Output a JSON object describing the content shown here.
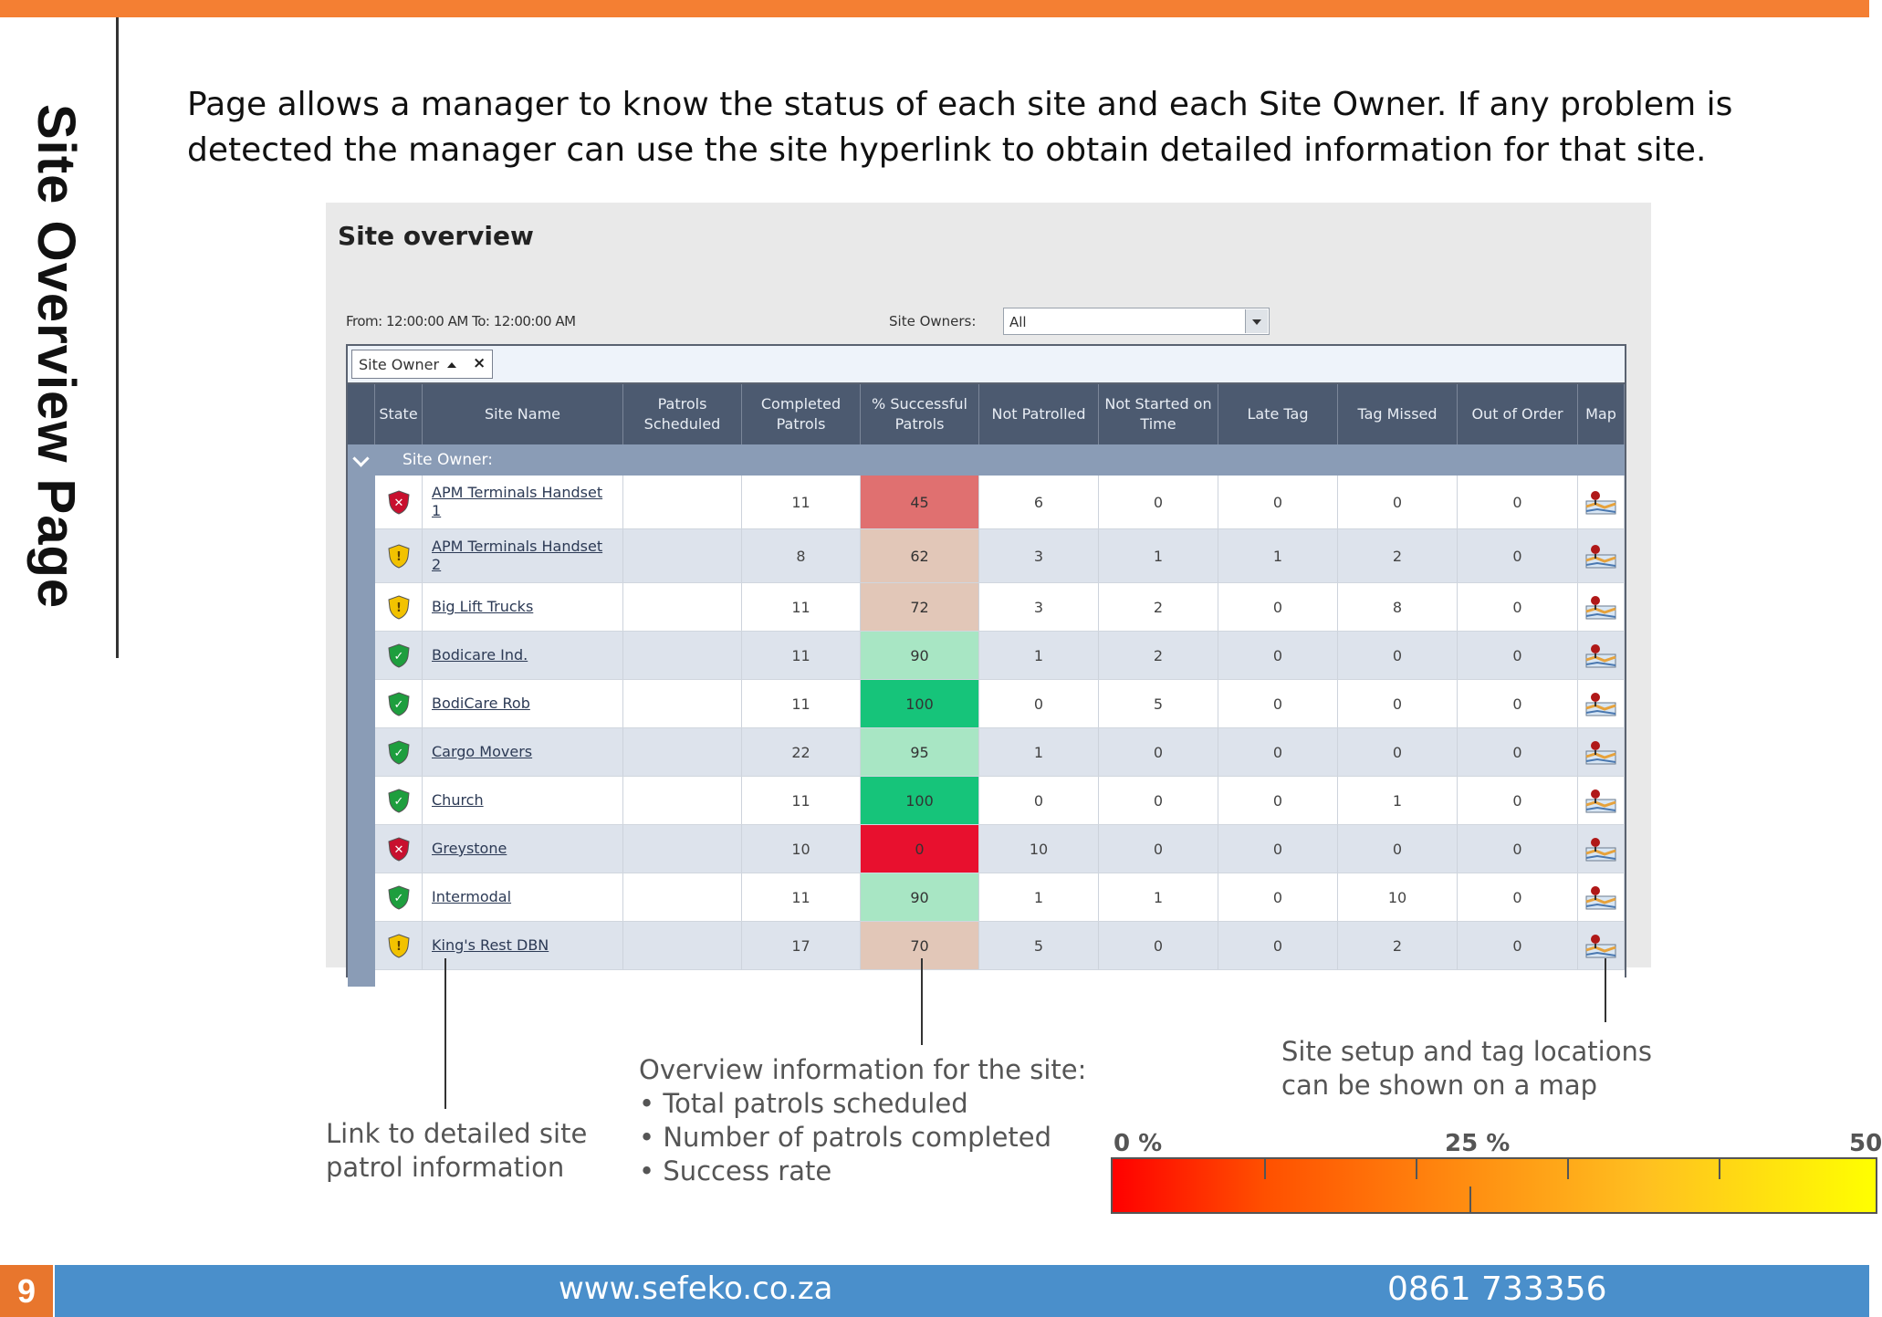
{
  "page": {
    "title": "Site Overview Page",
    "intro": "Page allows a manager to  know the status of each site and each Site Owner. If any problem is detected the manager can use the site hyperlink to  obtain detailed information for that site.",
    "page_number": "9",
    "footer_url": "www.sefeko.co.za",
    "footer_phone": "0861 733356",
    "accent_color": "#f47f33",
    "footer_color": "#4a8fcb"
  },
  "screen": {
    "title": "Site overview",
    "from_to": "From: 12:00:00 AM    To: 12:00:00 AM",
    "site_owners_label": "Site Owners:",
    "site_owners_value": "All",
    "group_chip": "Site Owner",
    "group_row": "Site Owner:",
    "columns": [
      "State",
      "Site Name",
      "Patrols Scheduled",
      "Completed Patrols",
      "% Successful Patrols",
      "Not Patrolled",
      "Not Started on Time",
      "Late Tag",
      "Tag Missed",
      "Out of Order",
      "Map"
    ],
    "rows": [
      {
        "state": "error",
        "name": "APM Terminals Handset 1",
        "scheduled": "",
        "completed": "11",
        "success": "45",
        "not_patrolled": "6",
        "not_started": "0",
        "late": "0",
        "missed": "0",
        "out_of_order": "0"
      },
      {
        "state": "warning",
        "name": "APM Terminals Handset 2",
        "scheduled": "",
        "completed": "8",
        "success": "62",
        "not_patrolled": "3",
        "not_started": "1",
        "late": "1",
        "missed": "2",
        "out_of_order": "0"
      },
      {
        "state": "warning",
        "name": "Big Lift Trucks",
        "scheduled": "",
        "completed": "11",
        "success": "72",
        "not_patrolled": "3",
        "not_started": "2",
        "late": "0",
        "missed": "8",
        "out_of_order": "0"
      },
      {
        "state": "ok",
        "name": "Bodicare Ind.",
        "scheduled": "",
        "completed": "11",
        "success": "90",
        "not_patrolled": "1",
        "not_started": "2",
        "late": "0",
        "missed": "0",
        "out_of_order": "0"
      },
      {
        "state": "ok",
        "name": "BodiCare Rob",
        "scheduled": "",
        "completed": "11",
        "success": "100",
        "not_patrolled": "0",
        "not_started": "5",
        "late": "0",
        "missed": "0",
        "out_of_order": "0"
      },
      {
        "state": "ok",
        "name": "Cargo Movers",
        "scheduled": "",
        "completed": "22",
        "success": "95",
        "not_patrolled": "1",
        "not_started": "0",
        "late": "0",
        "missed": "0",
        "out_of_order": "0"
      },
      {
        "state": "ok",
        "name": "Church",
        "scheduled": "",
        "completed": "11",
        "success": "100",
        "not_patrolled": "0",
        "not_started": "0",
        "late": "0",
        "missed": "1",
        "out_of_order": "0"
      },
      {
        "state": "error",
        "name": "Greystone",
        "scheduled": "",
        "completed": "10",
        "success": "0",
        "not_patrolled": "10",
        "not_started": "0",
        "late": "0",
        "missed": "0",
        "out_of_order": "0"
      },
      {
        "state": "ok",
        "name": "Intermodal",
        "scheduled": "",
        "completed": "11",
        "success": "90",
        "not_patrolled": "1",
        "not_started": "1",
        "late": "0",
        "missed": "10",
        "out_of_order": "0"
      },
      {
        "state": "warning",
        "name": "King's Rest DBN",
        "scheduled": "",
        "completed": "17",
        "success": "70",
        "not_patrolled": "5",
        "not_started": "0",
        "late": "0",
        "missed": "2",
        "out_of_order": "0"
      }
    ],
    "success_colors": {
      "45": "#e07070",
      "62": "#e2c7b8",
      "72": "#e2c7b8",
      "90": "#a8e6c4",
      "100": "#16c47a",
      "95": "#a8e6c4",
      "0": "#e8102e",
      "70": "#e2c7b8"
    },
    "state_icons": {
      "error": "error-shield-icon",
      "warning": "warning-shield-icon",
      "ok": "ok-shield-icon"
    },
    "map_icon": "map-icon"
  },
  "callouts": {
    "link": "Link to detailed site patrol information",
    "link_line1": "Link to detailed site",
    "link_line2": "patrol information",
    "overview_title": "Overview information for the site:",
    "overview_items": [
      "• Total patrols scheduled",
      "• Number of patrols completed",
      "• Success rate"
    ],
    "map_line1": "Site setup and tag locations",
    "map_line2": "can be shown on a map"
  },
  "scale": {
    "labels": [
      "0 %",
      "25 %",
      "50"
    ]
  }
}
